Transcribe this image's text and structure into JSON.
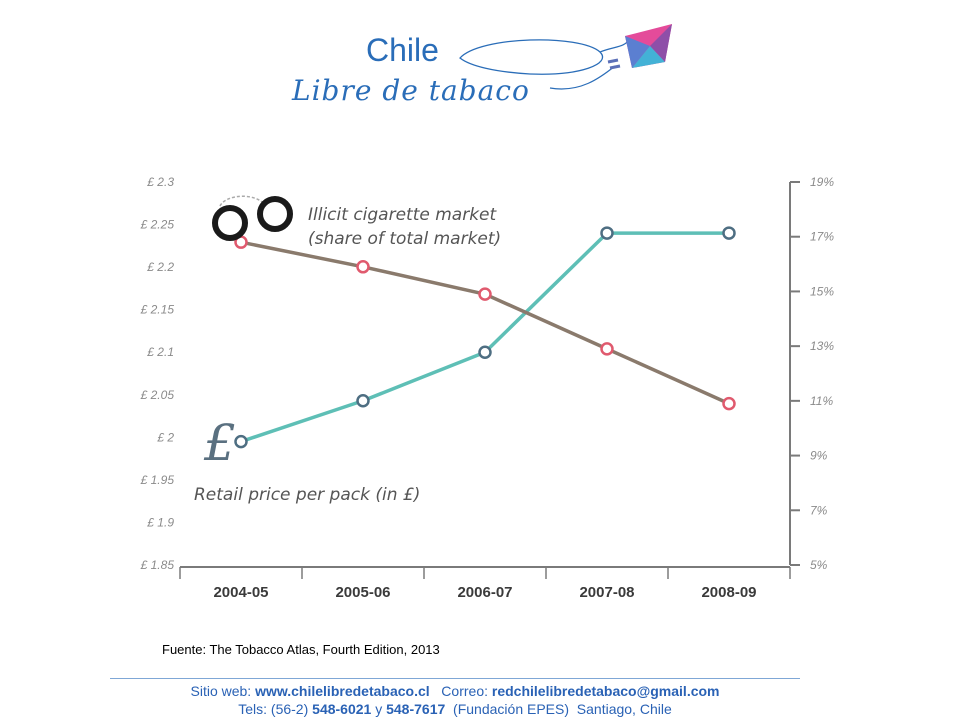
{
  "header": {
    "logo_title": "Chile",
    "logo_subtitle": "Libre de tabaco",
    "logo_kite_icon": "kite-icon"
  },
  "source_note": "Fuente: The Tobacco Atlas, Fourth  Edition, 2013",
  "footer": {
    "web_label": "Sitio web: ",
    "web_value": "www.chilelibredetabaco.cl",
    "mail_label": "   Correo: ",
    "mail_value": "redchilelibredetabaco@gmail.com",
    "tel_label": "Tels: (56-2) ",
    "tel_value1": "548-6021",
    "tel_sep": " y ",
    "tel_value2": "548-7617",
    "tel_rest": "  (Fundación EPES)  Santiago, Chile"
  },
  "chart_data": {
    "type": "line",
    "categories": [
      "2004-05",
      "2005-06",
      "2006-07",
      "2007-08",
      "2008-09"
    ],
    "left_axis": {
      "ticks": [
        "£ 1.85",
        "£ 1.9",
        "£ 1.95",
        "£ 2",
        "£ 2.05",
        "£ 2.1",
        "£ 2.15",
        "£ 2.2",
        "£ 2.25",
        "£ 2.3"
      ],
      "range": [
        1.85,
        2.3
      ]
    },
    "right_axis": {
      "ticks": [
        "5%",
        "7%",
        "9%",
        "11%",
        "13%",
        "15%",
        "17%",
        "19%"
      ],
      "range": [
        5,
        19
      ]
    },
    "series": [
      {
        "name": "Retail price per pack (in £)",
        "axis": "left",
        "color": "#5ebfb6",
        "marker_color": "#4e6e82",
        "values": [
          1.995,
          2.043,
          2.1,
          2.24,
          2.24
        ]
      },
      {
        "name": "Illicit cigarette market (share of total market)",
        "axis": "right",
        "color": "#8a7a6c",
        "marker_color": "#e05a6e",
        "values": [
          16.8,
          15.9,
          14.9,
          12.9,
          10.9
        ]
      }
    ],
    "annotations": {
      "illicit_label_line1": "Illicit cigarette market",
      "illicit_label_line2": "(share of total market)",
      "price_label": "Retail price per pack (in £)",
      "pound_symbol": "£",
      "handcuffs_icon": "handcuffs-icon"
    },
    "grid": false
  }
}
